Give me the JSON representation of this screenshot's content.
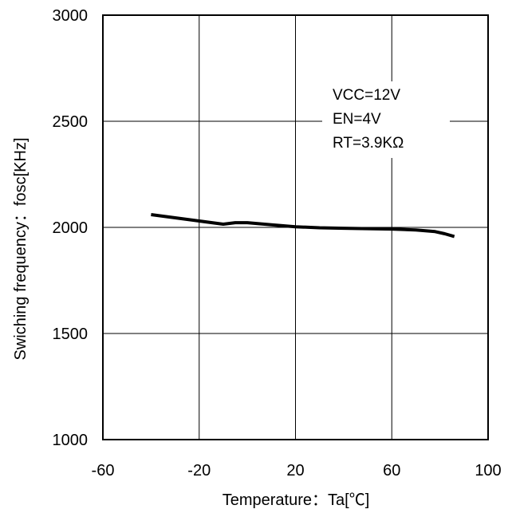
{
  "chart_data": {
    "type": "line",
    "xlabel": "Temperature：Ta[℃]",
    "ylabel": "Swiching frequency：fosc[KHz]",
    "xlim": [
      -60,
      100
    ],
    "ylim": [
      1000,
      3000
    ],
    "x_ticks": [
      -60,
      -20,
      20,
      60,
      100
    ],
    "y_ticks": [
      1000,
      1500,
      2000,
      2500,
      3000
    ],
    "grid": true,
    "annotations": [
      "VCC=12V",
      "EN=4V",
      "RT=3.9KΩ"
    ],
    "series": [
      {
        "x": [
          -40,
          -30,
          -20,
          -10,
          -5,
          0,
          10,
          20,
          30,
          40,
          50,
          60,
          70,
          78,
          82,
          86
        ],
        "y": [
          2060,
          2045,
          2030,
          2015,
          2022,
          2022,
          2012,
          2003,
          1998,
          1996,
          1994,
          1992,
          1988,
          1980,
          1970,
          1957
        ]
      }
    ]
  }
}
